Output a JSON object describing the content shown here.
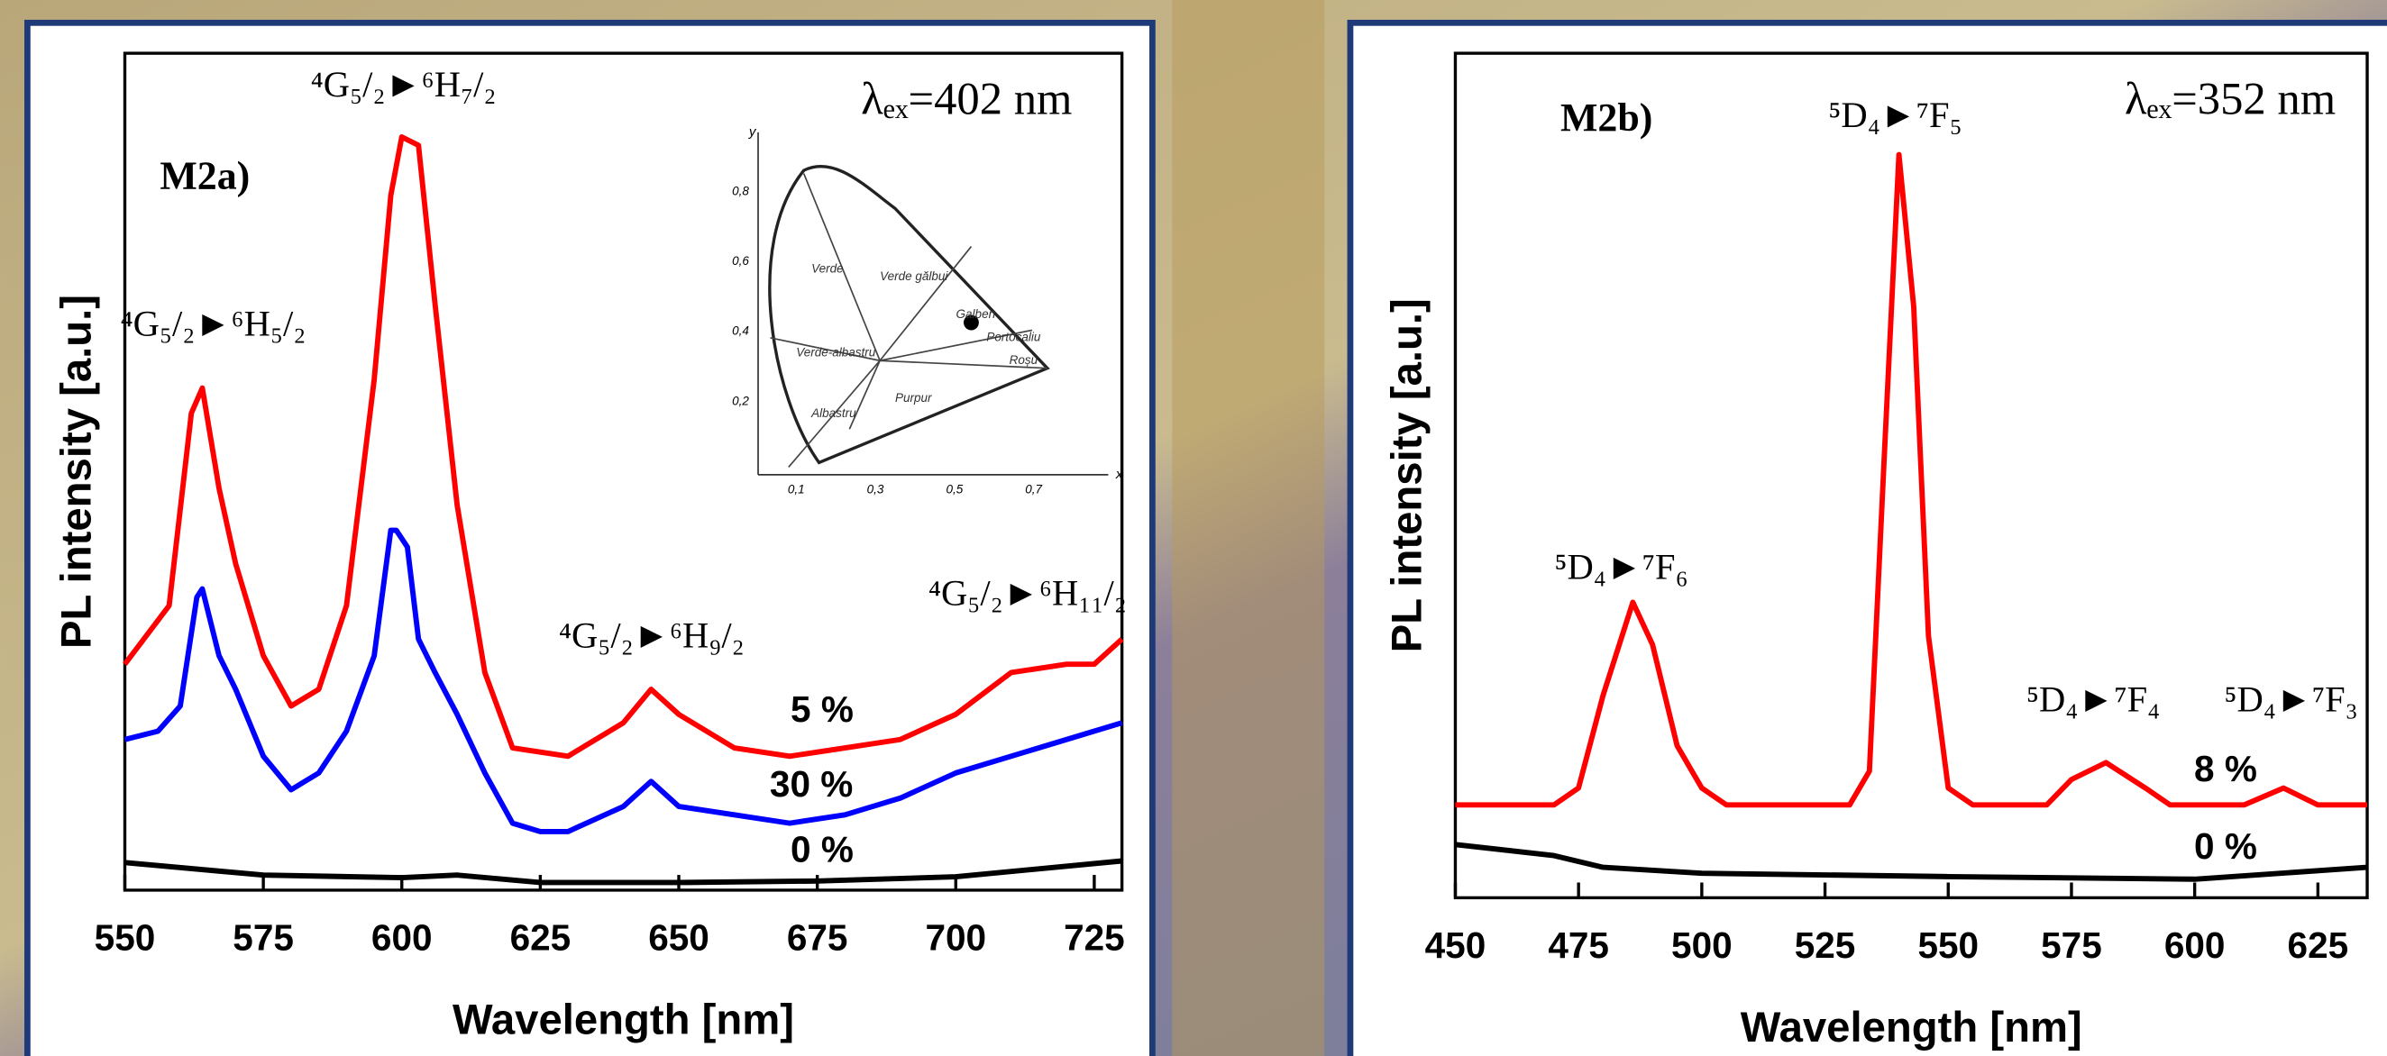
{
  "chart_data": [
    {
      "type": "line",
      "panel_label": "M2a)",
      "excitation": "λₑₓ=402 nm",
      "x_label": "Wavelength [nm]",
      "y_label": "PL intensity [a.u.]",
      "xlim": [
        550,
        730
      ],
      "xticks": [
        550,
        575,
        600,
        625,
        650,
        675,
        700,
        725
      ],
      "ylim": [
        0,
        100
      ],
      "annotations": [
        "⁴G₅/₂►⁶H₅/₂",
        "⁴G₅/₂►⁶H₇/₂",
        "⁴G₅/₂►⁶H₉/₂",
        "⁴G₅/₂►⁶H₁₁/₂"
      ],
      "series": [
        {
          "name": "5 %",
          "color": "#ff0000",
          "x": [
            550,
            558,
            562,
            564,
            567,
            570,
            575,
            580,
            585,
            590,
            595,
            598,
            600,
            603,
            606,
            610,
            615,
            620,
            630,
            640,
            645,
            650,
            660,
            670,
            680,
            690,
            700,
            710,
            720,
            725,
            730
          ],
          "values": [
            27,
            34,
            57,
            60,
            48,
            39,
            28,
            22,
            24,
            34,
            61,
            83,
            90,
            89,
            70,
            46,
            26,
            17,
            16,
            20,
            24,
            21,
            17,
            16,
            17,
            18,
            21,
            26,
            27,
            27,
            30
          ]
        },
        {
          "name": "30 %",
          "color": "#0000ff",
          "x": [
            550,
            556,
            560,
            563,
            564,
            567,
            570,
            575,
            580,
            585,
            590,
            595,
            598,
            599,
            601,
            603,
            606,
            610,
            615,
            620,
            625,
            630,
            640,
            645,
            650,
            660,
            670,
            680,
            690,
            700,
            710,
            720,
            730
          ],
          "values": [
            18,
            19,
            22,
            35,
            36,
            28,
            24,
            16,
            12,
            14,
            19,
            28,
            43,
            43,
            41,
            30,
            26,
            21,
            14,
            8,
            7,
            7,
            10,
            13,
            10,
            9,
            8,
            9,
            11,
            14,
            16,
            18,
            20
          ]
        },
        {
          "name": "0 %",
          "color": "#000000",
          "x": [
            550,
            575,
            600,
            610,
            625,
            650,
            675,
            700,
            730
          ],
          "values": [
            3.3,
            1.8,
            1.5,
            1.8,
            0.9,
            0.9,
            1.1,
            1.6,
            3.5
          ]
        }
      ],
      "inset": {
        "x_label": "x",
        "y_label": "y",
        "xticks": [
          "0,1",
          "0,3",
          "0,5",
          "0,7"
        ],
        "yticks": [
          "0,2",
          "0,4",
          "0,6",
          "0,8"
        ],
        "labels": [
          "Verde",
          "Verde gălbui",
          "Galben",
          "Portocaliu",
          "Roșu",
          "Verde-albastru",
          "Albastru",
          "Purpur"
        ]
      }
    },
    {
      "type": "line",
      "panel_label": "M2b)",
      "excitation": "λₑₓ=352 nm",
      "x_label": "Wavelength [nm]",
      "y_label": "PL intensity [a.u.]",
      "xlim": [
        450,
        635
      ],
      "xticks": [
        450,
        475,
        500,
        525,
        550,
        575,
        600,
        625
      ],
      "ylim": [
        0,
        100
      ],
      "annotations": [
        "⁵D₄►⁷F₆",
        "⁵D₄►⁷F₅",
        "⁵D₄►⁷F₄",
        "⁵D₄►⁷F₃"
      ],
      "series": [
        {
          "name": "8 %",
          "color": "#ff0000",
          "x": [
            450,
            470,
            475,
            480,
            486,
            490,
            495,
            500,
            505,
            530,
            534,
            537,
            540,
            543,
            546,
            550,
            555,
            570,
            575,
            582,
            590,
            595,
            610,
            618,
            625,
            635
          ],
          "values": [
            11,
            11,
            13,
            24,
            35,
            30,
            18,
            13,
            11,
            11,
            15,
            52,
            88,
            70,
            31,
            13,
            11,
            11,
            14,
            16,
            13,
            11,
            11,
            13,
            11,
            11
          ]
        },
        {
          "name": "0 %",
          "color": "#000000",
          "x": [
            450,
            470,
            480,
            500,
            550,
            600,
            635
          ],
          "values": [
            6.3,
            5,
            3.6,
            2.9,
            2.5,
            2.2,
            3.6
          ]
        }
      ]
    }
  ]
}
